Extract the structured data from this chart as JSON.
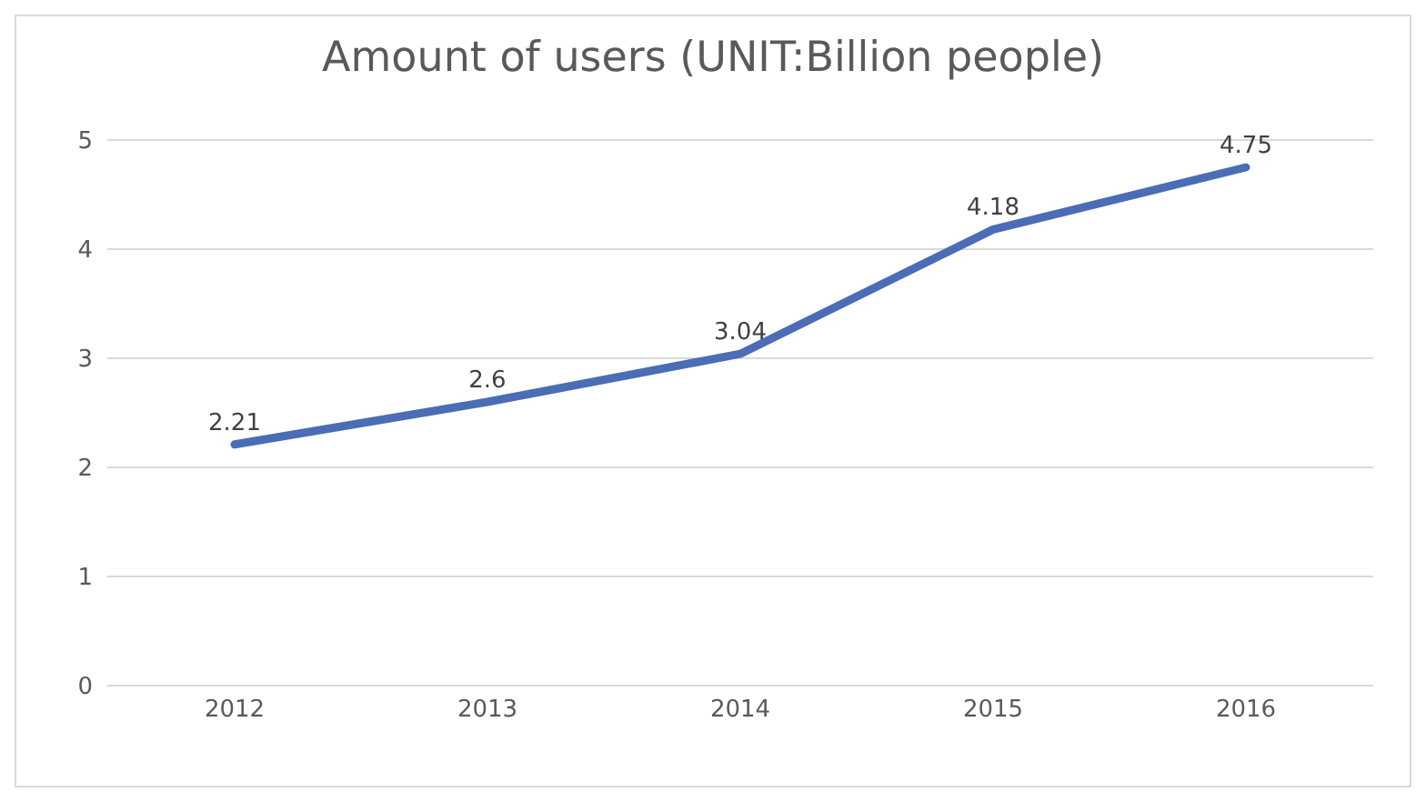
{
  "chart_data": {
    "type": "line",
    "title": "Amount of users (UNIT:Billion people)",
    "categories": [
      "2012",
      "2013",
      "2014",
      "2015",
      "2016"
    ],
    "series": [
      {
        "color": "#4a6db5",
        "values": [
          2.21,
          2.6,
          3.04,
          4.18,
          4.75
        ]
      }
    ],
    "ylim": [
      0,
      5
    ],
    "yticks": [
      0,
      1,
      2,
      3,
      4,
      5
    ],
    "grid": "y",
    "data_labels": true,
    "marker": "none",
    "line_style": "solid"
  }
}
